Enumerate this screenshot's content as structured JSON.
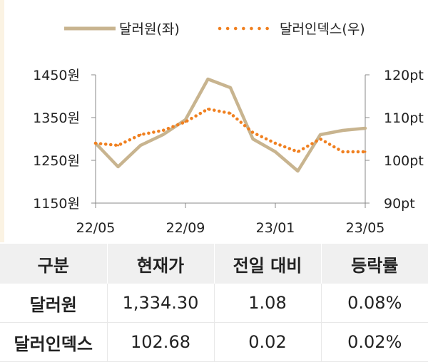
{
  "legend": {
    "series1": "달러원(좌)",
    "series2": "달러인덱스(우)"
  },
  "colors": {
    "dollar_won": "#c8b48f",
    "dollar_index": "#f08020",
    "axis": "#888888"
  },
  "chart_data": {
    "type": "line",
    "x_ticks": [
      "22/05",
      "22/09",
      "23/01",
      "23/05"
    ],
    "y_left": {
      "ticks": [
        "1450원",
        "1350원",
        "1250원",
        "1150원"
      ],
      "range": [
        1150,
        1450
      ]
    },
    "y_right": {
      "ticks": [
        "120pt",
        "110pt",
        "100pt",
        "90pt"
      ],
      "range": [
        90,
        120
      ]
    },
    "series": [
      {
        "name": "달러원(좌)",
        "axis": "left",
        "style": "solid",
        "x": [
          "22/05",
          "22/06",
          "22/07",
          "22/08",
          "22/09",
          "22/10",
          "22/11",
          "22/12",
          "23/01",
          "23/02",
          "23/03",
          "23/04",
          "23/05"
        ],
        "values": [
          1290,
          1235,
          1285,
          1310,
          1345,
          1440,
          1420,
          1300,
          1270,
          1225,
          1310,
          1320,
          1325
        ]
      },
      {
        "name": "달러인덱스(우)",
        "axis": "right",
        "style": "dotted",
        "x": [
          "22/05",
          "22/06",
          "22/07",
          "22/08",
          "22/09",
          "22/10",
          "22/11",
          "22/12",
          "23/01",
          "23/02",
          "23/03",
          "23/04",
          "23/05"
        ],
        "values": [
          104,
          103.5,
          106,
          107,
          109,
          112,
          111,
          106.5,
          104,
          102,
          105,
          102,
          102
        ]
      }
    ]
  },
  "table": {
    "headers": [
      "구분",
      "현재가",
      "전일 대비",
      "등락률"
    ],
    "rows": [
      [
        "달러원",
        "1,334.30",
        "1.08",
        "0.08%"
      ],
      [
        "달러인덱스",
        "102.68",
        "0.02",
        "0.02%"
      ]
    ]
  }
}
